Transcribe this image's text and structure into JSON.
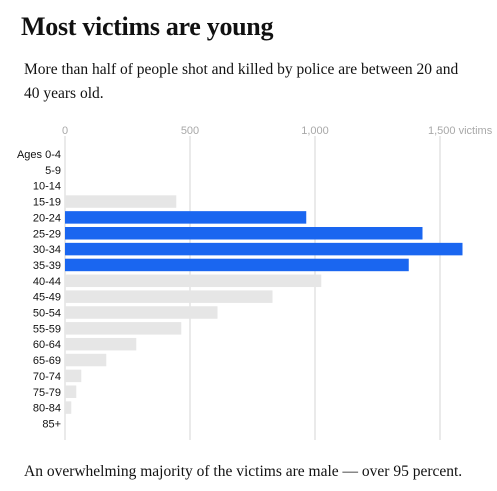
{
  "title": "Most victims are young",
  "subtitle": "More than half of people shot and killed by police are between 20 and 40 years old.",
  "footnote": "An overwhelming majority of the victims are male — over 95 percent.",
  "colors": {
    "highlight": "#1a66f0",
    "default": "#e6e6e6",
    "gridline": "#d6d6d6",
    "tick_text": "#a8a8a8"
  },
  "chart_data": {
    "type": "bar",
    "orientation": "horizontal",
    "categories": [
      "Ages 0-4",
      "5-9",
      "10-14",
      "15-19",
      "20-24",
      "25-29",
      "30-34",
      "35-39",
      "40-44",
      "45-49",
      "50-54",
      "55-59",
      "60-64",
      "65-69",
      "70-74",
      "75-79",
      "80-84",
      "85+"
    ],
    "values": [
      0,
      0,
      0,
      445,
      965,
      1430,
      1590,
      1375,
      1025,
      830,
      610,
      465,
      285,
      165,
      65,
      45,
      25,
      0
    ],
    "highlighted": [
      "20-24",
      "25-29",
      "30-34",
      "35-39"
    ],
    "xlim": [
      0,
      1600
    ],
    "xticks": [
      0,
      500,
      1000,
      1500
    ],
    "xtick_labels": [
      "0",
      "500",
      "1,000",
      "1,500 victims"
    ],
    "xlabel": "",
    "ylabel": "",
    "grid": true
  }
}
